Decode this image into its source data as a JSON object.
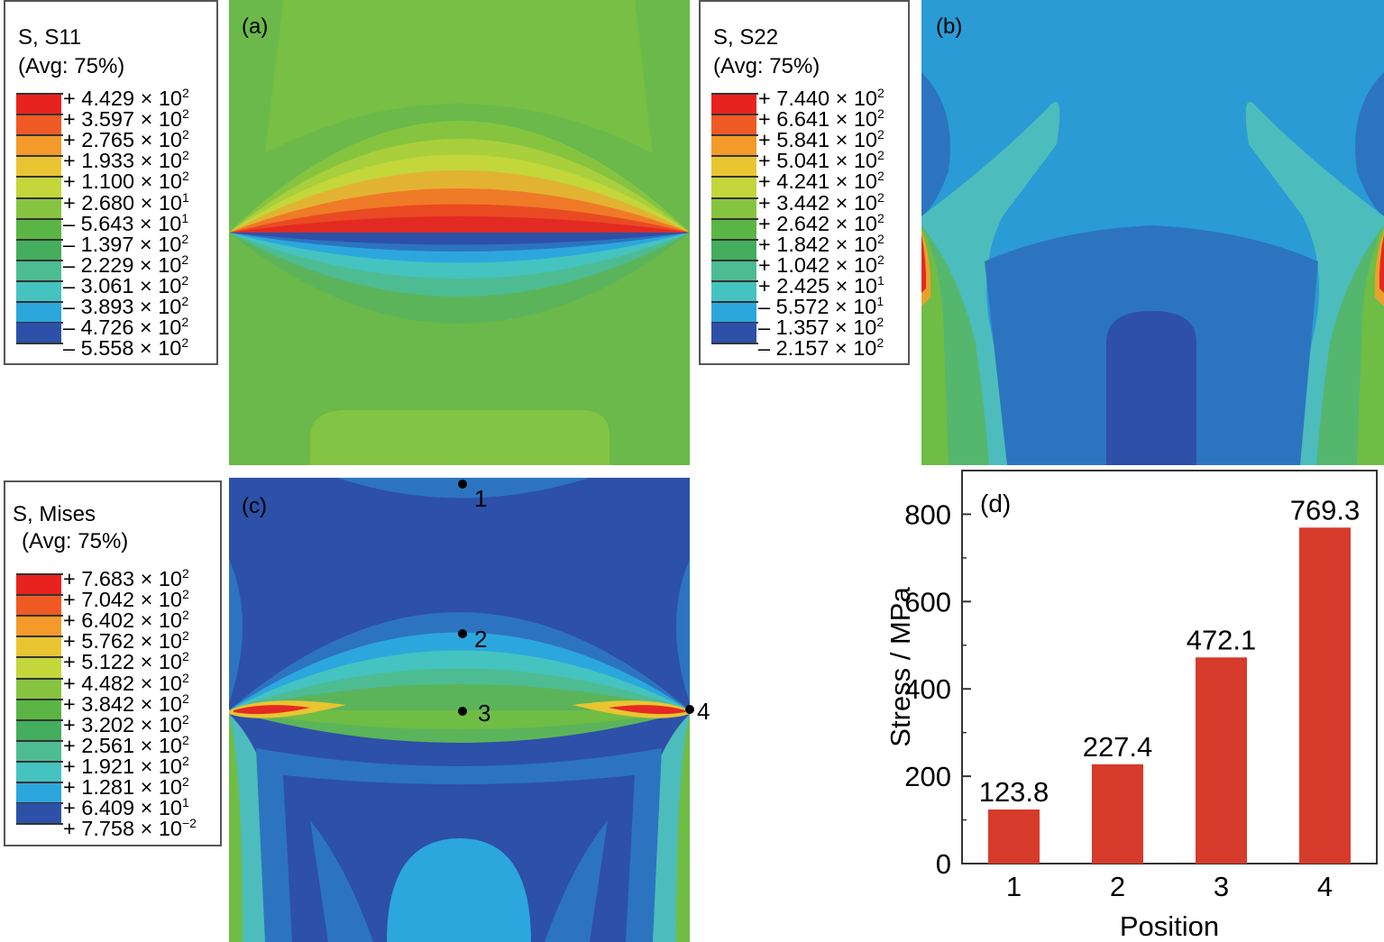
{
  "panels": {
    "a": {
      "label": "(a)",
      "legend_title": "S, S11",
      "legend_avg": "(Avg: 75%)",
      "entries": [
        {
          "sign": "+",
          "mant": "4.429",
          "exp": "2",
          "color": "#e8231f"
        },
        {
          "sign": "+",
          "mant": "3.597",
          "exp": "2",
          "color": "#ef5a24"
        },
        {
          "sign": "+",
          "mant": "2.765",
          "exp": "2",
          "color": "#f39a2a"
        },
        {
          "sign": "+",
          "mant": "1.933",
          "exp": "2",
          "color": "#e9c532"
        },
        {
          "sign": "+",
          "mant": "1.100",
          "exp": "2",
          "color": "#c3d63a"
        },
        {
          "sign": "+",
          "mant": "2.680",
          "exp": "1",
          "color": "#86c440"
        },
        {
          "sign": "–",
          "mant": "5.643",
          "exp": "1",
          "color": "#5bb544"
        },
        {
          "sign": "–",
          "mant": "1.397",
          "exp": "2",
          "color": "#44ad5e"
        },
        {
          "sign": "–",
          "mant": "2.229",
          "exp": "2",
          "color": "#4dbc93"
        },
        {
          "sign": "–",
          "mant": "3.061",
          "exp": "2",
          "color": "#45c3c0"
        },
        {
          "sign": "–",
          "mant": "3.893",
          "exp": "2",
          "color": "#2ca7dd"
        },
        {
          "sign": "–",
          "mant": "4.726",
          "exp": "2",
          "color": "#2d74c0"
        },
        {
          "sign": "–",
          "mant": "5.558",
          "exp": "2",
          "color": "#2d50a8"
        }
      ]
    },
    "b": {
      "label": "(b)",
      "legend_title": "S, S22",
      "legend_avg": "(Avg: 75%)",
      "entries": [
        {
          "sign": "+",
          "mant": "7.440",
          "exp": "2",
          "color": "#e8231f"
        },
        {
          "sign": "+",
          "mant": "6.641",
          "exp": "2",
          "color": "#ef5a24"
        },
        {
          "sign": "+",
          "mant": "5.841",
          "exp": "2",
          "color": "#f39a2a"
        },
        {
          "sign": "+",
          "mant": "5.041",
          "exp": "2",
          "color": "#e9c532"
        },
        {
          "sign": "+",
          "mant": "4.241",
          "exp": "2",
          "color": "#c3d63a"
        },
        {
          "sign": "+",
          "mant": "3.442",
          "exp": "2",
          "color": "#86c440"
        },
        {
          "sign": "+",
          "mant": "2.642",
          "exp": "2",
          "color": "#5bb544"
        },
        {
          "sign": "+",
          "mant": "1.842",
          "exp": "2",
          "color": "#44ad5e"
        },
        {
          "sign": "+",
          "mant": "1.042",
          "exp": "2",
          "color": "#4dbc93"
        },
        {
          "sign": "+",
          "mant": "2.425",
          "exp": "1",
          "color": "#45c3c0"
        },
        {
          "sign": "–",
          "mant": "5.572",
          "exp": "1",
          "color": "#2ca7dd"
        },
        {
          "sign": "–",
          "mant": "1.357",
          "exp": "2",
          "color": "#2d74c0"
        },
        {
          "sign": "–",
          "mant": "2.157",
          "exp": "2",
          "color": "#2d50a8"
        }
      ]
    },
    "c": {
      "label": "(c)",
      "legend_title": "S, Mises",
      "legend_avg": "(Avg: 75%)",
      "points": [
        "1",
        "2",
        "3",
        "4"
      ],
      "entries": [
        {
          "sign": "+",
          "mant": "7.683",
          "exp": "2",
          "color": "#e8231f"
        },
        {
          "sign": "+",
          "mant": "7.042",
          "exp": "2",
          "color": "#ef5a24"
        },
        {
          "sign": "+",
          "mant": "6.402",
          "exp": "2",
          "color": "#f39a2a"
        },
        {
          "sign": "+",
          "mant": "5.762",
          "exp": "2",
          "color": "#e9c532"
        },
        {
          "sign": "+",
          "mant": "5.122",
          "exp": "2",
          "color": "#c3d63a"
        },
        {
          "sign": "+",
          "mant": "4.482",
          "exp": "2",
          "color": "#86c440"
        },
        {
          "sign": "+",
          "mant": "3.842",
          "exp": "2",
          "color": "#5bb544"
        },
        {
          "sign": "+",
          "mant": "3.202",
          "exp": "2",
          "color": "#44ad5e"
        },
        {
          "sign": "+",
          "mant": "2.561",
          "exp": "2",
          "color": "#4dbc93"
        },
        {
          "sign": "+",
          "mant": "1.921",
          "exp": "2",
          "color": "#45c3c0"
        },
        {
          "sign": "+",
          "mant": "1.281",
          "exp": "2",
          "color": "#2ca7dd"
        },
        {
          "sign": "+",
          "mant": "6.409",
          "exp": "1",
          "color": "#2d74c0"
        },
        {
          "sign": "+",
          "mant": "7.758",
          "exp": "−2",
          "color": "#2d50a8"
        }
      ]
    }
  },
  "chart_data": {
    "type": "bar",
    "panel_label": "(d)",
    "categories": [
      "1",
      "2",
      "3",
      "4"
    ],
    "values": [
      123.8,
      227.4,
      472.1,
      769.3
    ],
    "data_labels": [
      "123.8",
      "227.4",
      "472.1",
      "769.3"
    ],
    "xlabel": "Position",
    "ylabel": "Stress / MPa",
    "ylim": [
      0,
      900
    ],
    "yticks": [
      0,
      200,
      400,
      600,
      800
    ],
    "bar_color": "#d63a2a",
    "grid": false
  }
}
